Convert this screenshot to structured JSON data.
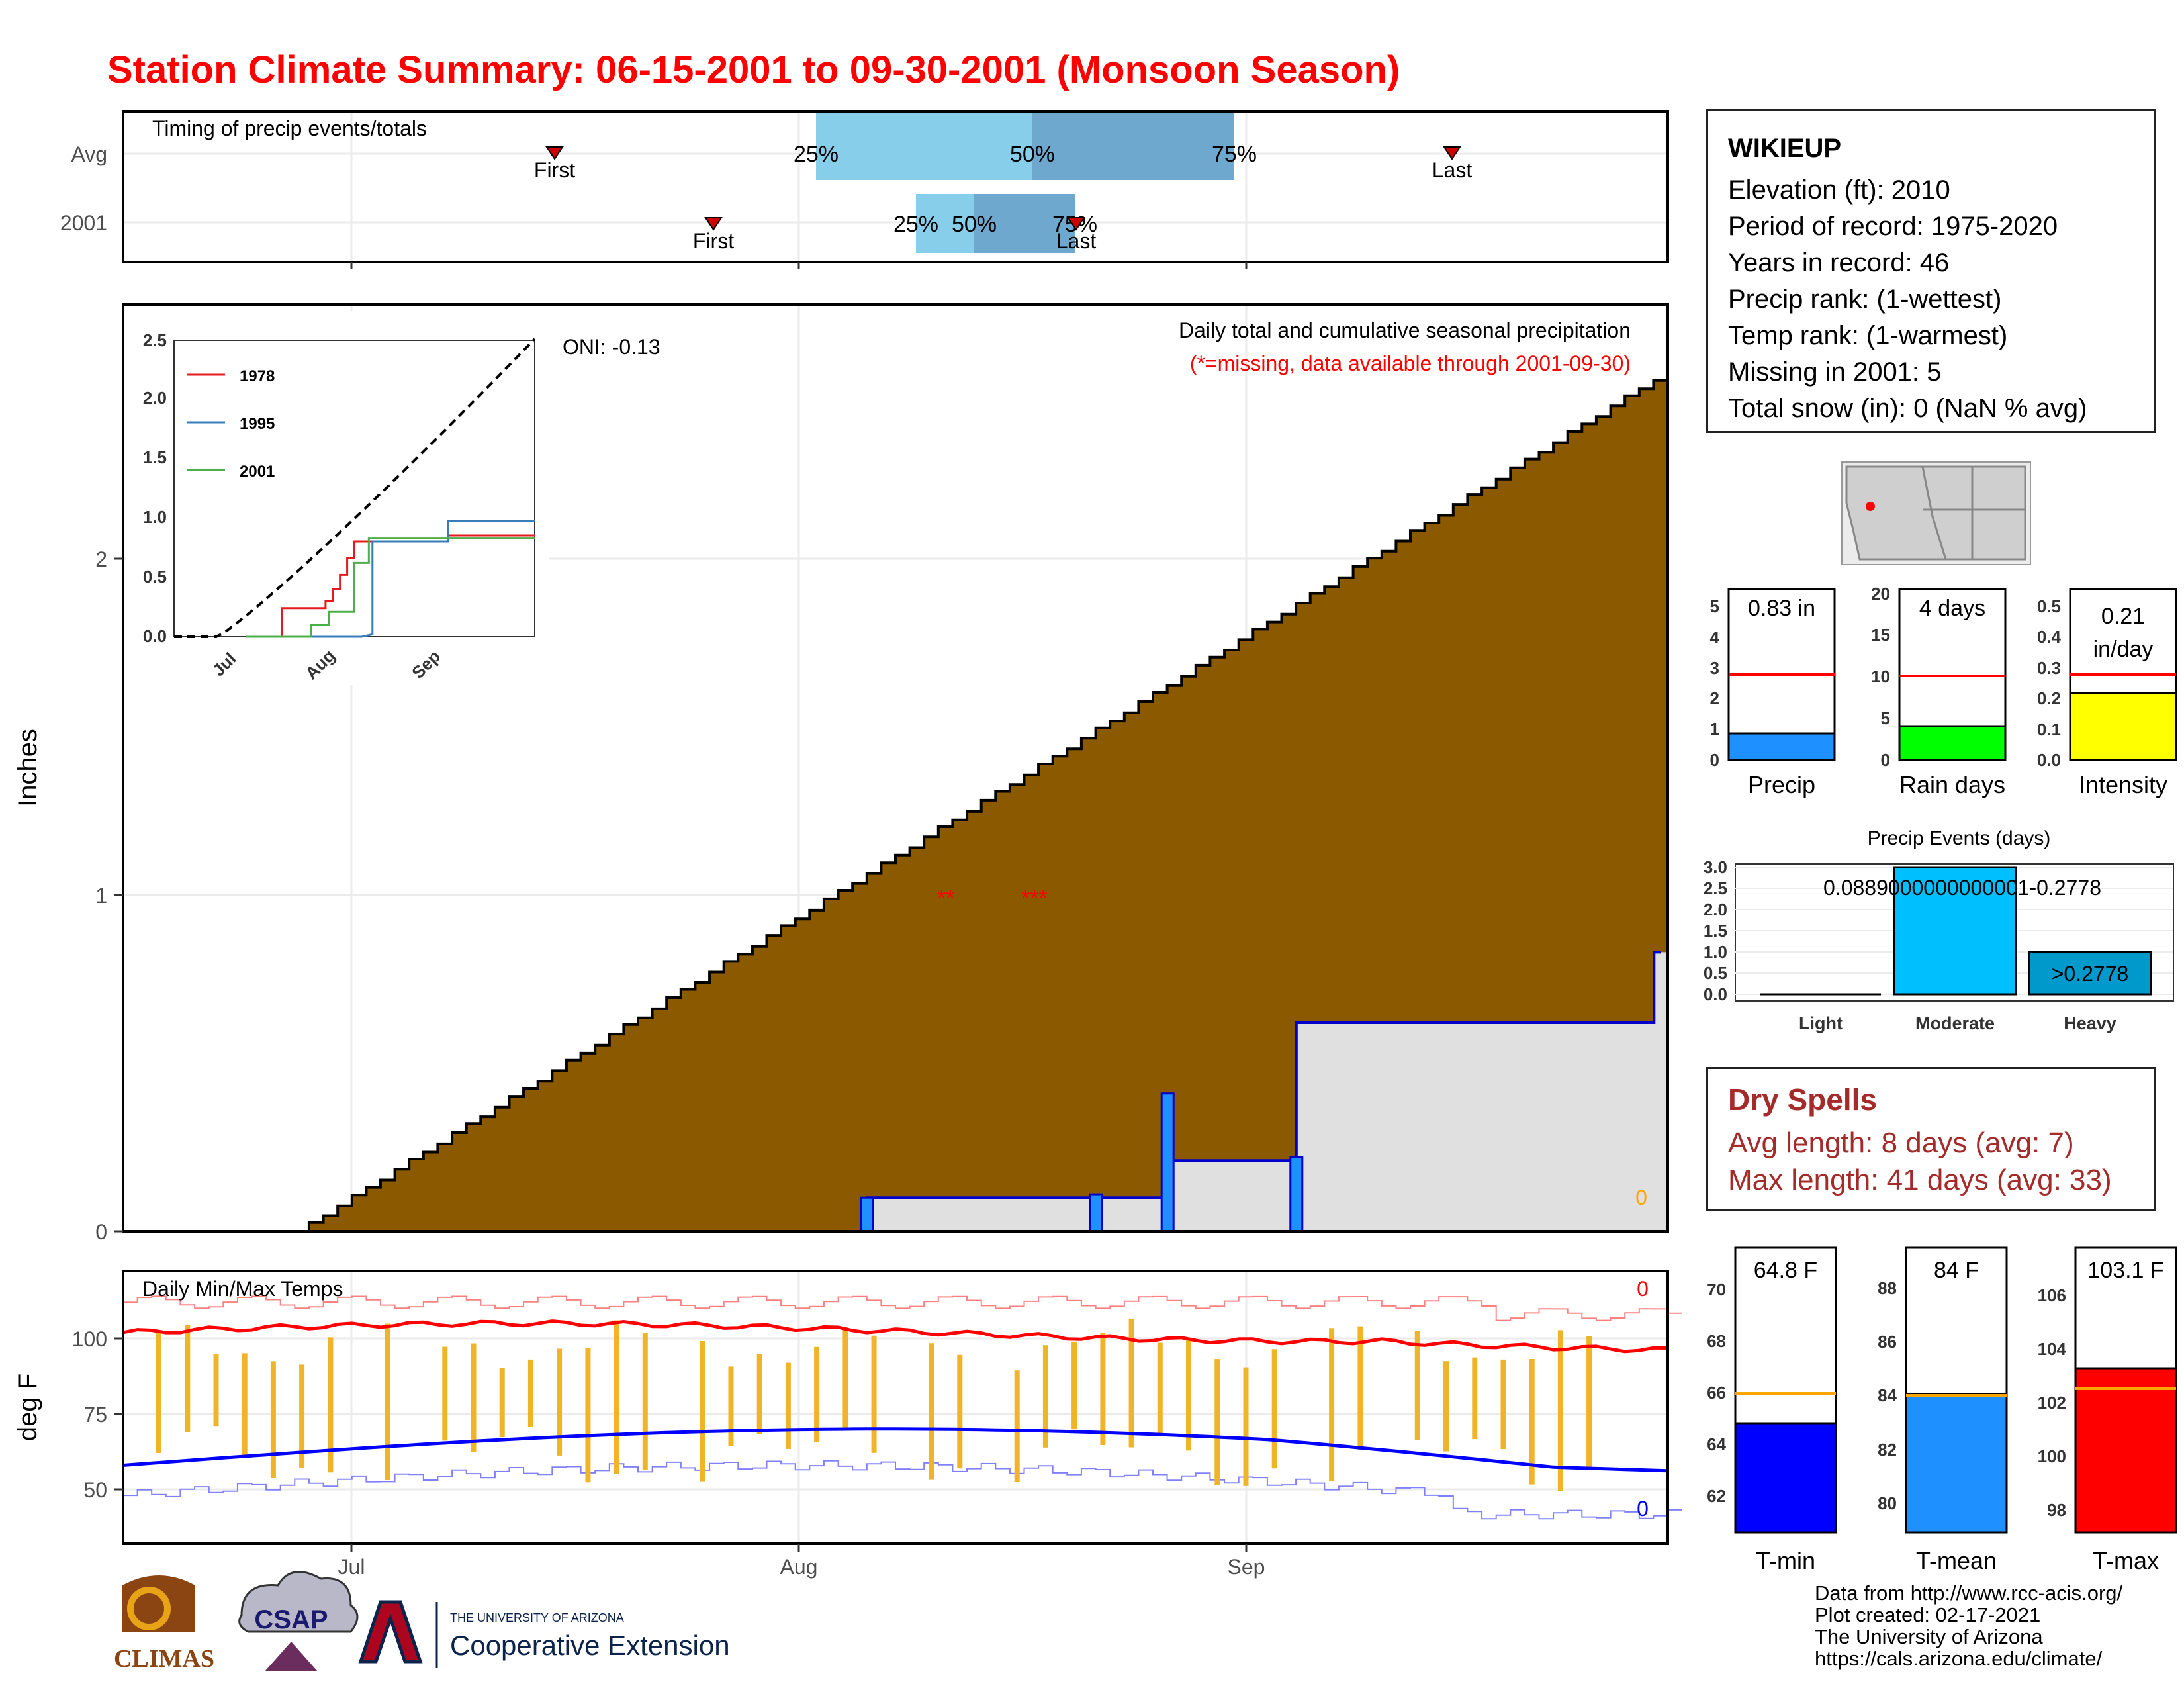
{
  "title": "Station Climate Summary: 06-15-2001 to 09-30-2001 (Monsoon Season)",
  "timing_panel": {
    "label": "Timing of precip events/totals",
    "rows": [
      {
        "name": "Avg",
        "first_label": "First",
        "last_label": "Last",
        "p25": "25%",
        "p50": "50%",
        "p75": "75%"
      },
      {
        "name": "2001",
        "first_label": "First",
        "last_label": "Last",
        "p25": "25%",
        "p50": "50%",
        "p75": "75%"
      }
    ]
  },
  "precip_panel": {
    "ylabel": "Inches",
    "annotation": "Daily total and cumulative seasonal precipitation",
    "missing_note": "(*=missing, data available through 2001-09-30)",
    "oni": "ONI: -0.13",
    "zero_label": "0",
    "y_ticks": [
      "0",
      "1",
      "2"
    ],
    "missing_marker_1": "**",
    "missing_marker_2": "***"
  },
  "inset": {
    "y_ticks": [
      "0.0",
      "0.5",
      "1.0",
      "1.5",
      "2.0",
      "2.5"
    ],
    "x_ticks": [
      "Jul",
      "Aug",
      "Sep"
    ],
    "legend": [
      {
        "name": "1978",
        "color": "#e41a1c"
      },
      {
        "name": "1995",
        "color": "#377eb8"
      },
      {
        "name": "2001",
        "color": "#4daf4a"
      }
    ]
  },
  "temp_panel": {
    "label": "Daily Min/Max Temps",
    "ylabel": "deg F",
    "y_ticks": [
      "50",
      "75",
      "100"
    ],
    "x_ticks": [
      "Jul",
      "Aug",
      "Sep"
    ],
    "max_missing": "0",
    "min_missing": "0"
  },
  "station": {
    "name": "WIKIEUP",
    "lines": [
      "Elevation (ft): 2010",
      "Period of record: 1975-2020",
      "Years in record: 46",
      "Precip rank:  (1-wettest)",
      "Temp rank:  (1-warmest)",
      "Missing in 2001: 5",
      "Total snow (in): 0 (NaN % avg)"
    ]
  },
  "summary_bars": [
    {
      "label": "Precip",
      "value_text": "0.83 in",
      "ticks": [
        "0",
        "1",
        "2",
        "3",
        "4",
        "5"
      ],
      "color": "#1e90ff"
    },
    {
      "label": "Rain days",
      "value_text": "4 days",
      "ticks": [
        "0",
        "5",
        "10",
        "15",
        "20"
      ],
      "color": "#00ff00"
    },
    {
      "label": "Intensity",
      "value_text_1": "0.21",
      "value_text_2": "in/day",
      "ticks": [
        "0.0",
        "0.1",
        "0.2",
        "0.3",
        "0.4",
        "0.5"
      ],
      "color": "#ffff00"
    }
  ],
  "events": {
    "title": "Precip Events (days)",
    "y_ticks": [
      "0.0",
      "0.5",
      "1.0",
      "1.5",
      "2.0",
      "2.5",
      "3.0"
    ],
    "categories": [
      "Light",
      "Moderate",
      "Heavy"
    ],
    "moderate_label": "0.0889000000000001-0.2778",
    "heavy_label": ">0.2778"
  },
  "dry_spells": {
    "title": "Dry Spells",
    "avg": "Avg length: 8 days (avg: 7)",
    "max": "Max length: 41 days (avg: 33)"
  },
  "temp_bars": [
    {
      "label": "T-min",
      "value_text": "64.8 F",
      "ticks": [
        "62",
        "64",
        "66",
        "68",
        "70"
      ],
      "color": "#0000ff"
    },
    {
      "label": "T-mean",
      "value_text": "84 F",
      "ticks": [
        "80",
        "82",
        "84",
        "86",
        "88"
      ],
      "color": "#1e90ff"
    },
    {
      "label": "T-max",
      "value_text": "103.1 F",
      "ticks": [
        "98",
        "100",
        "102",
        "104",
        "106"
      ],
      "color": "#ff0000"
    }
  ],
  "footer": {
    "line1": "Data from http://www.rcc-acis.org/",
    "line2": "Plot created: 02-17-2021",
    "line3": "The University of Arizona",
    "line4": "https://cals.arizona.edu/climate/",
    "logo_climas": "CLIMAS",
    "logo_csap": "CSAP",
    "logo_ua_small": "THE UNIVERSITY OF ARIZONA",
    "logo_ua_big": "Cooperative Extension"
  },
  "chart_data": [
    {
      "type": "line",
      "title": "Daily total and cumulative seasonal precipitation",
      "ylabel": "Inches",
      "ylim": [
        0,
        2.75
      ],
      "x_range": [
        "2001-06-15",
        "2001-09-30"
      ],
      "series": [
        {
          "name": "2001",
          "type": "step",
          "x": [
            "2001-08-06",
            "2001-08-22",
            "2001-08-27",
            "2001-09-05",
            "2001-09-30"
          ],
          "y": [
            0.1,
            0.1,
            0.21,
            0.62,
            0.83
          ]
        }
      ],
      "daily_bars": {
        "x": [
          "2001-08-06",
          "2001-08-22",
          "2001-08-27",
          "2001-09-05"
        ],
        "values": [
          0.1,
          0.11,
          0.41,
          0.22
        ]
      }
    },
    {
      "type": "line",
      "title": "Daily Min/Max Temps",
      "ylabel": "deg F",
      "ylim": [
        40,
        118
      ],
      "series": [
        {
          "name": "avg max",
          "approx_range": [
            94,
            106
          ]
        },
        {
          "name": "avg min",
          "approx_range": [
            55,
            72
          ]
        }
      ]
    },
    {
      "type": "bar",
      "title": "Precip Events (days)",
      "categories": [
        "Light",
        "Moderate",
        "Heavy"
      ],
      "values": [
        0,
        3,
        1
      ]
    },
    {
      "type": "bar",
      "categories": [
        "Precip",
        "Rain days",
        "Intensity"
      ],
      "values": [
        0.83,
        4,
        0.21
      ]
    },
    {
      "type": "bar",
      "categories": [
        "T-min",
        "T-mean",
        "T-max"
      ],
      "values": [
        64.8,
        84,
        103.1
      ]
    }
  ]
}
